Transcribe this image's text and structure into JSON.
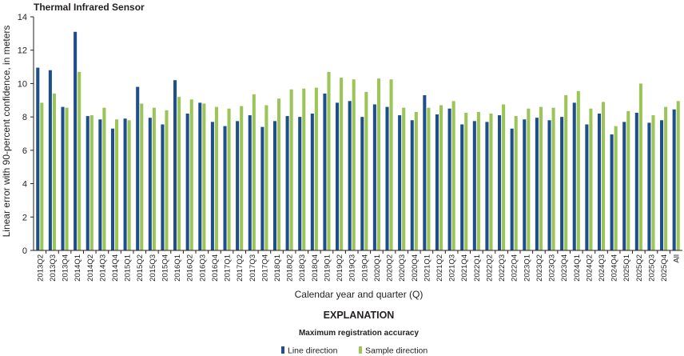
{
  "chart_data": {
    "type": "bar",
    "title": "Thermal Infrared Sensor",
    "ylabel": "Linear error with 90-percent confidence, in meters",
    "xlabel": "Calendar year and quarter (Q)",
    "ylim": [
      0,
      14
    ],
    "yticks": [
      0,
      2,
      4,
      6,
      8,
      10,
      12,
      14
    ],
    "grid": false,
    "categories": [
      "2013Q2",
      "2013Q3",
      "2013Q4",
      "2014Q1",
      "2014Q2",
      "2014Q3",
      "2014Q4",
      "2015Q1",
      "2015Q2",
      "2015Q3",
      "2015Q4",
      "2016Q1",
      "2016Q2",
      "2016Q3",
      "2016Q4",
      "2017Q1",
      "2017Q2",
      "2017Q3",
      "2017Q4",
      "2018Q1",
      "2018Q2",
      "2018Q3",
      "2018Q4",
      "2019Q1",
      "2019Q2",
      "2019Q3",
      "2019Q4",
      "2020Q1",
      "2020Q2",
      "2020Q3",
      "2020Q4",
      "2021Q1",
      "2021Q2",
      "2021Q3",
      "2021Q4",
      "2022Q1",
      "2022Q2",
      "2022Q3",
      "2022Q4",
      "2023Q1",
      "2023Q2",
      "2023Q3",
      "2023Q4",
      "2024Q1",
      "2024Q2",
      "2024Q3",
      "2024Q4",
      "2025Q1",
      "2025Q2",
      "2025Q3",
      "2025Q4",
      "All"
    ],
    "series": [
      {
        "name": "Line direction",
        "color": "#1f4e8c",
        "values": [
          10.95,
          10.8,
          8.6,
          13.1,
          8.05,
          7.85,
          7.3,
          7.9,
          9.8,
          7.95,
          7.55,
          10.2,
          8.2,
          8.85,
          7.7,
          7.45,
          7.75,
          8.1,
          7.4,
          7.75,
          8.05,
          8.0,
          8.2,
          9.4,
          8.85,
          8.95,
          8.0,
          8.75,
          8.6,
          8.1,
          7.8,
          9.3,
          8.15,
          8.5,
          7.55,
          7.75,
          7.7,
          8.1,
          7.3,
          7.85,
          7.95,
          7.8,
          8.0,
          8.85,
          7.55,
          8.2,
          6.95,
          7.7,
          8.25,
          7.65,
          7.8,
          8.45
        ]
      },
      {
        "name": "Sample direction",
        "color": "#9bc556",
        "values": [
          8.85,
          9.4,
          8.55,
          10.7,
          8.1,
          8.55,
          7.85,
          7.8,
          8.8,
          8.55,
          8.4,
          9.2,
          9.05,
          8.8,
          8.6,
          8.5,
          8.65,
          9.35,
          8.7,
          9.1,
          9.65,
          9.7,
          9.75,
          10.7,
          10.35,
          10.25,
          9.5,
          10.3,
          10.25,
          8.55,
          8.3,
          8.55,
          8.7,
          8.95,
          8.25,
          8.3,
          8.2,
          8.75,
          8.05,
          8.5,
          8.6,
          8.55,
          9.3,
          9.55,
          8.5,
          8.9,
          7.45,
          8.35,
          10.0,
          8.1,
          8.6,
          8.95
        ]
      }
    ],
    "legend": {
      "heading": "EXPLANATION",
      "subheading": "Maximum registration accuracy",
      "placement": "bottom"
    }
  }
}
